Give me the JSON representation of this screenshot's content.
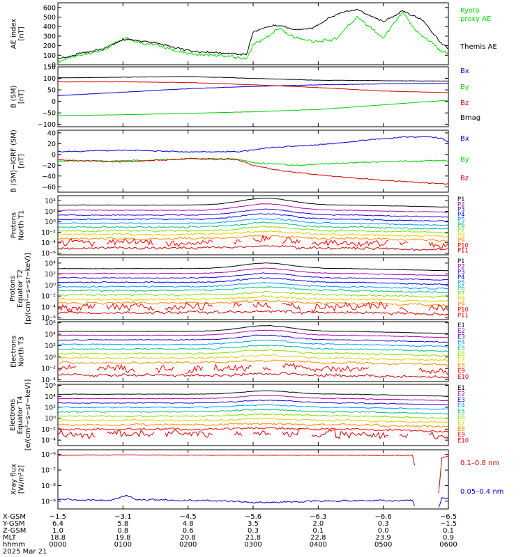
{
  "chart_data": {
    "type": "line",
    "hours": [
      0,
      1,
      2,
      3,
      4,
      5,
      6
    ],
    "panels": [
      {
        "id": "ae",
        "ylabel": [
          "AE index",
          "[nT]"
        ],
        "yscale": "linear",
        "ylim": [
          0,
          650
        ],
        "ticks": [
          0,
          100,
          200,
          300,
          400,
          500,
          600
        ],
        "tick_labels": [
          "0",
          "100",
          "200",
          "300",
          "400",
          "500",
          "600"
        ],
        "series": [
          {
            "name": "Kyoto proxy AE",
            "color": "#00dd00",
            "label_lines": [
              "Kyoto",
              "proxy AE"
            ],
            "amp": 25,
            "points": [
              [
                0,
                40
              ],
              [
                0.3,
                90
              ],
              [
                0.7,
                150
              ],
              [
                1.05,
                300
              ],
              [
                1.2,
                240
              ],
              [
                1.5,
                220
              ],
              [
                1.8,
                150
              ],
              [
                2.1,
                110
              ],
              [
                2.6,
                90
              ],
              [
                2.9,
                60
              ],
              [
                3.0,
                220
              ],
              [
                3.2,
                280
              ],
              [
                3.4,
                380
              ],
              [
                3.55,
                310
              ],
              [
                3.8,
                270
              ],
              [
                4.0,
                240
              ],
              [
                4.3,
                280
              ],
              [
                4.6,
                510
              ],
              [
                4.8,
                390
              ],
              [
                5.0,
                280
              ],
              [
                5.3,
                560
              ],
              [
                5.5,
                350
              ],
              [
                5.8,
                200
              ],
              [
                6.0,
                100
              ]
            ]
          },
          {
            "name": "Themis AE",
            "color": "#000000",
            "label_lines": [
              "Themis AE"
            ],
            "amp": 15,
            "points": [
              [
                0,
                60
              ],
              [
                0.3,
                110
              ],
              [
                0.7,
                170
              ],
              [
                1.05,
                270
              ],
              [
                1.2,
                255
              ],
              [
                1.5,
                230
              ],
              [
                1.8,
                180
              ],
              [
                2.1,
                140
              ],
              [
                2.6,
                120
              ],
              [
                2.9,
                110
              ],
              [
                3.0,
                340
              ],
              [
                3.2,
                390
              ],
              [
                3.4,
                420
              ],
              [
                3.6,
                370
              ],
              [
                3.9,
                380
              ],
              [
                4.3,
                540
              ],
              [
                4.6,
                580
              ],
              [
                5.0,
                450
              ],
              [
                5.3,
                560
              ],
              [
                5.6,
                470
              ],
              [
                5.9,
                220
              ],
              [
                6.0,
                170
              ]
            ]
          }
        ]
      },
      {
        "id": "b",
        "ylabel": [
          "B (SM)",
          "[nT]"
        ],
        "yscale": "linear",
        "ylim": [
          -110,
          150
        ],
        "ticks": [
          -100,
          -50,
          0,
          50,
          100,
          150
        ],
        "tick_labels": [
          "−100",
          "−50",
          "0",
          "50",
          "100",
          "150"
        ],
        "series": [
          {
            "name": "Bx",
            "color": "#0000cc",
            "label_lines": [
              "Bx"
            ],
            "amp": 1,
            "points": [
              [
                0,
                25
              ],
              [
                1,
                40
              ],
              [
                2,
                55
              ],
              [
                3,
                65
              ],
              [
                4,
                72
              ],
              [
                5,
                76
              ],
              [
                6,
                78
              ]
            ]
          },
          {
            "name": "By",
            "color": "#00cc00",
            "label_lines": [
              "By"
            ],
            "amp": 1,
            "points": [
              [
                0,
                -62
              ],
              [
                1,
                -58
              ],
              [
                2,
                -52
              ],
              [
                3,
                -45
              ],
              [
                4,
                -35
              ],
              [
                5,
                -15
              ],
              [
                6,
                5
              ]
            ]
          },
          {
            "name": "Bz",
            "color": "#cc0000",
            "label_lines": [
              "Bz"
            ],
            "amp": 1,
            "points": [
              [
                0,
                85
              ],
              [
                1,
                85
              ],
              [
                2,
                82
              ],
              [
                3,
                72
              ],
              [
                4,
                60
              ],
              [
                5,
                45
              ],
              [
                6,
                38
              ]
            ]
          },
          {
            "name": "Bmag",
            "color": "#000000",
            "label_lines": [
              "Bmag"
            ],
            "amp": 1,
            "points": [
              [
                0,
                102
              ],
              [
                1,
                105
              ],
              [
                2,
                108
              ],
              [
                3,
                100
              ],
              [
                4,
                92
              ],
              [
                5,
                90
              ],
              [
                6,
                88
              ]
            ]
          }
        ]
      },
      {
        "id": "bd",
        "ylabel": [
          "B (SM)−IGRF (SM)",
          "[nT]"
        ],
        "yscale": "linear",
        "ylim": [
          -70,
          45
        ],
        "ticks": [
          -60,
          -40,
          -20,
          0,
          20,
          40
        ],
        "tick_labels": [
          "−60",
          "−40",
          "−20",
          "0",
          "20",
          "40"
        ],
        "series": [
          {
            "name": "Bx",
            "color": "#0000cc",
            "label_lines": [
              "Bx"
            ],
            "amp": 1.5,
            "points": [
              [
                0,
                5
              ],
              [
                1,
                8
              ],
              [
                2,
                5
              ],
              [
                2.8,
                5
              ],
              [
                3.2,
                12
              ],
              [
                4,
                18
              ],
              [
                4.6,
                25
              ],
              [
                5.3,
                32
              ],
              [
                5.6,
                33
              ],
              [
                5.9,
                30
              ],
              [
                6,
                22
              ]
            ]
          },
          {
            "name": "By",
            "color": "#00cc00",
            "label_lines": [
              "By"
            ],
            "amp": 2,
            "points": [
              [
                0,
                -12
              ],
              [
                1,
                -12
              ],
              [
                2,
                -8
              ],
              [
                2.8,
                -10
              ],
              [
                3,
                -15
              ],
              [
                3.6,
                -20
              ],
              [
                4.5,
                -15
              ],
              [
                5.5,
                -12
              ],
              [
                6,
                -12
              ]
            ]
          },
          {
            "name": "Bz",
            "color": "#cc0000",
            "label_lines": [
              "Bz"
            ],
            "amp": 1.5,
            "points": [
              [
                0,
                -10
              ],
              [
                1,
                -14
              ],
              [
                2,
                -8
              ],
              [
                2.7,
                -8
              ],
              [
                3,
                -20
              ],
              [
                3.4,
                -30
              ],
              [
                4.2,
                -40
              ],
              [
                5,
                -48
              ],
              [
                6,
                -55
              ]
            ]
          }
        ]
      },
      {
        "id": "p1",
        "ylabel": [
          "Protons",
          "North T1"
        ],
        "yscale": "log",
        "ylim": [
          -6.3,
          5
        ],
        "ticks": [
          -6,
          -4,
          -2,
          0,
          2,
          4
        ],
        "tick_labels": [
          "10⁻⁶",
          "10⁻⁴",
          "10⁻²",
          "10⁰",
          "10²",
          "10⁴"
        ],
        "series_names": [
          "P1",
          "P2",
          "P3",
          "P4",
          "P5",
          "P6",
          "P7",
          "P8",
          "P9",
          "P10",
          "P11"
        ],
        "series_colors": [
          "#000000",
          "#aa00aa",
          "#2200cc",
          "#0000ff",
          "#0099ff",
          "#00bb88",
          "#88dd00",
          "#ddcc00",
          "#ff8800",
          "#ff0000",
          "#cc0000"
        ],
        "levels": [
          3.2,
          2.2,
          1.3,
          0.5,
          -0.3,
          -1.0,
          -1.7,
          -2.4,
          -3.2,
          -4.0,
          -5.0
        ],
        "bump": 1.3,
        "gap_series": [
          9
        ]
      },
      {
        "id": "p2",
        "ylabel": [
          "Protons",
          "Equator T2",
          "[p/(cm²−s−sr−keV)]"
        ],
        "yscale": "log",
        "ylim": [
          -6.3,
          5
        ],
        "ticks": [
          -6,
          -4,
          -2,
          0,
          2,
          4
        ],
        "tick_labels": [
          "10⁻⁶",
          "10⁻⁴",
          "10⁻²",
          "10⁰",
          "10²",
          "10⁴"
        ],
        "series_names": [
          "P1",
          "P2",
          "P3",
          "P4",
          "P5",
          "P6",
          "P7",
          "P8",
          "P9",
          "P10",
          "P11"
        ],
        "series_colors": [
          "#000000",
          "#aa00aa",
          "#2200cc",
          "#0000ff",
          "#0099ff",
          "#00bb88",
          "#88dd00",
          "#ddcc00",
          "#ff8800",
          "#ff0000",
          "#cc0000"
        ],
        "levels": [
          3.0,
          2.1,
          1.3,
          0.5,
          -0.3,
          -1.0,
          -1.8,
          -2.6,
          -3.3,
          -4.0,
          -5.0
        ],
        "bump": 1.0,
        "gap_series": [
          9
        ]
      },
      {
        "id": "e3",
        "ylabel": [
          "Electrons",
          "North T3"
        ],
        "yscale": "log",
        "ylim": [
          -4.3,
          6.2
        ],
        "ticks": [
          -4,
          -2,
          0,
          2,
          4,
          6
        ],
        "tick_labels": [
          "10⁻⁴",
          "10⁻²",
          "10⁰",
          "10²",
          "10⁴",
          "10⁶"
        ],
        "series_names": [
          "E1",
          "E2",
          "E3",
          "E4",
          "E5",
          "E6",
          "E7",
          "E8",
          "E9",
          "E10"
        ],
        "series_colors": [
          "#000000",
          "#aa00aa",
          "#2200cc",
          "#0099ff",
          "#00bb88",
          "#88dd00",
          "#ddcc00",
          "#ff8800",
          "#ff0000",
          "#cc0000"
        ],
        "levels": [
          4.5,
          3.8,
          3.0,
          2.2,
          1.4,
          0.6,
          -0.2,
          -1.0,
          -2.0,
          -3.2
        ],
        "bump": 1.0,
        "gap_series": [
          8
        ]
      },
      {
        "id": "e4",
        "ylabel": [
          "Electrons",
          "Equator T4",
          "[e/(cm²−s−sr−keV)]"
        ],
        "yscale": "log",
        "ylim": [
          -5,
          6.2
        ],
        "ticks": [
          -4,
          -2,
          0,
          2,
          4,
          6
        ],
        "tick_labels": [
          "10⁻⁴",
          "10⁻²",
          "10⁰",
          "10²",
          "10⁴",
          "10⁶"
        ],
        "series_names": [
          "E1",
          "E2",
          "E3",
          "E4",
          "E5",
          "E6",
          "E7",
          "E8",
          "E9",
          "E10"
        ],
        "series_colors": [
          "#000000",
          "#aa00aa",
          "#2200cc",
          "#0099ff",
          "#00bb88",
          "#88dd00",
          "#ddcc00",
          "#ff8800",
          "#ff0000",
          "#cc0000"
        ],
        "levels": [
          4.4,
          3.6,
          2.8,
          2.0,
          1.2,
          0.4,
          -0.4,
          -1.2,
          -2.0,
          -3.0
        ],
        "bump": 0.6,
        "gap_series": [
          9
        ]
      },
      {
        "id": "xray",
        "ylabel": [
          "Xray flux",
          "[W/m²2]"
        ],
        "yscale": "log",
        "ylim": [
          -9.5,
          -5.7
        ],
        "ticks": [
          -9,
          -8,
          -7,
          -6
        ],
        "tick_labels": [
          "10⁻⁹",
          "10⁻⁸",
          "10⁻⁷",
          "10⁻⁶"
        ],
        "series": [
          {
            "name": "0.1–0.8 nm",
            "color": "#cc0000",
            "label_lines": [
              "0.1–0.8 nm"
            ],
            "amp": 0.02,
            "segments": [
              [
                [
                  0,
                  -6.05
                ],
                [
                  1,
                  -6.03
                ],
                [
                  2,
                  -6.05
                ],
                [
                  3,
                  -6.05
                ],
                [
                  4,
                  -6.05
                ],
                [
                  5,
                  -6.06
                ],
                [
                  5.45,
                  -6.05
                ],
                [
                  5.48,
                  -6.7
                ]
              ],
              [
                [
                  5.85,
                  -8.5
                ],
                [
                  5.9,
                  -6.2
                ],
                [
                  6,
                  -6.1
                ]
              ]
            ]
          },
          {
            "name": "0.05–0.4 nm",
            "color": "#0000cc",
            "label_lines": [
              "0.05–0.4 nm"
            ],
            "amp": 0.08,
            "segments": [
              [
                [
                  0,
                  -8.9
                ],
                [
                  0.8,
                  -8.95
                ],
                [
                  1.05,
                  -8.6
                ],
                [
                  1.2,
                  -8.9
                ],
                [
                  2,
                  -8.95
                ],
                [
                  2.8,
                  -9.0
                ],
                [
                  3,
                  -9.1
                ],
                [
                  3.5,
                  -9.05
                ],
                [
                  4,
                  -9.0
                ],
                [
                  5,
                  -8.95
                ],
                [
                  5.45,
                  -8.95
                ],
                [
                  5.48,
                  -9.3
                ]
              ],
              [
                [
                  5.85,
                  -9.4
                ],
                [
                  5.9,
                  -8.8
                ],
                [
                  6,
                  -8.85
                ]
              ]
            ]
          }
        ]
      }
    ],
    "x_axis": {
      "row_labels": [
        "X-GSM",
        "Y-GSM",
        "Z-GSM",
        "MLT",
        "hhmm"
      ],
      "columns": [
        [
          "−1.5",
          "−3.1",
          "−4.5",
          "−5.6",
          "−6.3",
          "−6.6",
          "−6.5"
        ],
        [
          "6.4",
          "5.8",
          "4.8",
          "3.5",
          "2.0",
          "0.3",
          "−1.5"
        ],
        [
          "1.0",
          "0.8",
          "0.6",
          "0.3",
          "0.1",
          "0.0",
          "0.1"
        ],
        [
          "18.8",
          "19.8",
          "20.8",
          "21.8",
          "22.8",
          "23.9",
          "0.9"
        ],
        [
          "0000",
          "0100",
          "0200",
          "0300",
          "0400",
          "0500",
          "0600"
        ]
      ],
      "date": "2025 Mar 21"
    }
  }
}
